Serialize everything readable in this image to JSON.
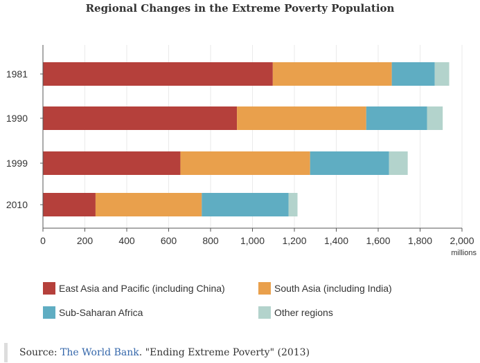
{
  "chart_data": {
    "type": "bar",
    "orientation": "horizontal",
    "stacked": true,
    "title": "Regional Changes in the Extreme Poverty Population",
    "xlabel": "millions",
    "ylabel": "",
    "xlim": [
      0,
      2000
    ],
    "xticks": [
      0,
      200,
      400,
      600,
      800,
      1000,
      1200,
      1400,
      1600,
      1800,
      2000
    ],
    "xtick_labels": [
      "0",
      "200",
      "400",
      "600",
      "800",
      "1,000",
      "1,200",
      "1,400",
      "1,600",
      "1,800",
      "2,000"
    ],
    "categories": [
      "1981",
      "1990",
      "1999",
      "2010"
    ],
    "series": [
      {
        "name": "East Asia and Pacific (including China)",
        "color": "#b5403b",
        "values": [
          1097,
          926,
          656,
          251
        ]
      },
      {
        "name": "South Asia (including India)",
        "color": "#e9a04c",
        "values": [
          568,
          617,
          619,
          507
        ]
      },
      {
        "name": "Sub-Saharan Africa",
        "color": "#5fadc2",
        "values": [
          205,
          290,
          377,
          414
        ]
      },
      {
        "name": "Other regions",
        "color": "#b3d3cc",
        "values": [
          69,
          75,
          89,
          43
        ]
      }
    ],
    "legend_position": "bottom",
    "grid": true
  },
  "source": {
    "prefix": "Source:",
    "link_text": "The World Bank",
    "suffix": ". \"Ending Extreme Poverty\" (2013)"
  }
}
